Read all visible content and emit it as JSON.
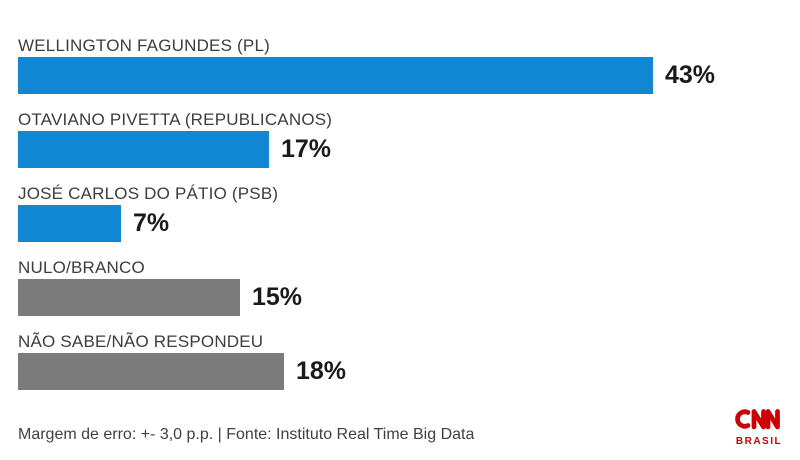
{
  "chart_data": {
    "type": "bar",
    "orientation": "horizontal",
    "title": "",
    "xlabel": "",
    "ylabel": "",
    "xlim": [
      0,
      43
    ],
    "grid": false,
    "legend": false,
    "categories": [
      "WELLINGTON FAGUNDES (PL)",
      "OTAVIANO PIVETTA (REPUBLICANOS)",
      "JOSÉ CARLOS DO PÁTIO (PSB)",
      "NULO/BRANCO",
      "NÃO SABE/NÃO RESPONDEU"
    ],
    "values": [
      43,
      17,
      7,
      15,
      18
    ],
    "value_labels": [
      "43%",
      "17%",
      "7%",
      "15%",
      "18%"
    ],
    "bar_colors": [
      "#1186d2",
      "#1186d2",
      "#1186d2",
      "#7b7b7b",
      "#7b7b7b"
    ]
  },
  "colors": {
    "candidate_bar": "#1186d2",
    "other_bar": "#7b7b7b",
    "label_text": "#3d3d3d",
    "value_text": "#1a1a1a",
    "logo_red": "#cc0000"
  },
  "footer": {
    "note": "Margem de erro: +- 3,0 p.p. | Fonte: Instituto Real Time Big Data"
  },
  "branding": {
    "logo_text": "CNN",
    "logo_subtext": "BRASIL"
  }
}
